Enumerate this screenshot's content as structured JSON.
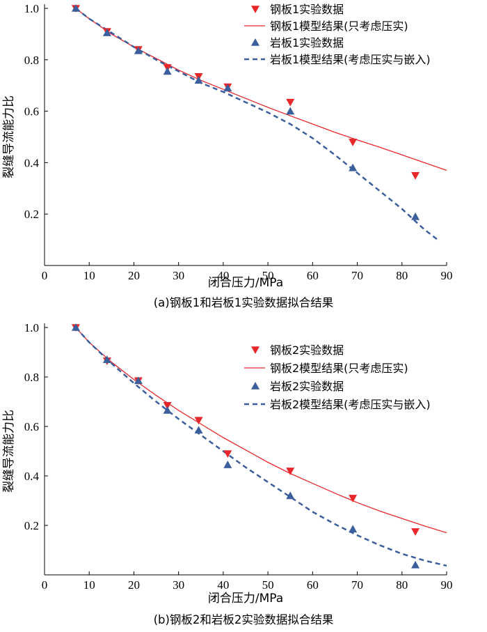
{
  "colors": {
    "steel": "#e8272a",
    "rock": "#3b5e9c"
  },
  "chart_data": [
    {
      "type": "scatter",
      "caption": "(a)钢板1和岩板1实验数据拟合结果",
      "xlabel": "闭合压力/MPa",
      "ylabel": "裂缝导流能力比",
      "xlim": [
        0,
        90
      ],
      "ylim": [
        0,
        1.0
      ],
      "xticks": [
        0,
        10,
        20,
        30,
        40,
        50,
        60,
        70,
        80,
        90
      ],
      "yticks": [
        0.2,
        0.4,
        0.6,
        0.8,
        1.0
      ],
      "grid": false,
      "legend_position": "top-right",
      "series": [
        {
          "name": "钢板1实验数据",
          "kind": "markers",
          "marker": "triangle-down",
          "x": [
            7,
            14,
            21,
            27.5,
            34.5,
            41,
            55,
            69,
            83
          ],
          "y": [
            1.0,
            0.91,
            0.84,
            0.77,
            0.735,
            0.695,
            0.635,
            0.48,
            0.35
          ]
        },
        {
          "name": "钢板1模型结果(只考虑压实)",
          "kind": "line",
          "style": "solid",
          "x": [
            7,
            10,
            15,
            20,
            25,
            30,
            35,
            40,
            45,
            50,
            55,
            60,
            65,
            70,
            75,
            80,
            85,
            90
          ],
          "y": [
            1.0,
            0.96,
            0.9,
            0.85,
            0.805,
            0.76,
            0.72,
            0.685,
            0.65,
            0.615,
            0.582,
            0.55,
            0.518,
            0.488,
            0.46,
            0.43,
            0.4,
            0.37
          ]
        },
        {
          "name": "岩板1实验数据",
          "kind": "markers",
          "marker": "triangle-up",
          "x": [
            7,
            14,
            21,
            27.5,
            34.5,
            41,
            55,
            69,
            83
          ],
          "y": [
            1.0,
            0.905,
            0.835,
            0.755,
            0.72,
            0.69,
            0.6,
            0.38,
            0.19
          ]
        },
        {
          "name": "岩板1模型结果(考虑压实与嵌入)",
          "kind": "line",
          "style": "dashed",
          "x": [
            7,
            10,
            15,
            20,
            25,
            30,
            35,
            40,
            45,
            50,
            55,
            60,
            65,
            70,
            75,
            80,
            85,
            88
          ],
          "y": [
            1.0,
            0.96,
            0.905,
            0.85,
            0.8,
            0.755,
            0.71,
            0.675,
            0.635,
            0.595,
            0.55,
            0.495,
            0.43,
            0.36,
            0.29,
            0.22,
            0.14,
            0.1
          ]
        }
      ]
    },
    {
      "type": "scatter",
      "caption": "(b)钢板2和岩板2实验数据拟合结果",
      "xlabel": "闭合压力/MPa",
      "ylabel": "裂缝导流能力比",
      "xlim": [
        0,
        90
      ],
      "ylim": [
        0,
        1.0
      ],
      "xticks": [
        0,
        10,
        20,
        30,
        40,
        50,
        60,
        70,
        80,
        90
      ],
      "yticks": [
        0.2,
        0.4,
        0.6,
        0.8,
        1.0
      ],
      "grid": false,
      "legend_position": "right",
      "series": [
        {
          "name": "钢板2实验数据",
          "kind": "markers",
          "marker": "triangle-down",
          "x": [
            7,
            14,
            21,
            27.5,
            34.5,
            41,
            55,
            69,
            83
          ],
          "y": [
            1.0,
            0.865,
            0.785,
            0.685,
            0.625,
            0.49,
            0.42,
            0.31,
            0.175
          ]
        },
        {
          "name": "钢板2模型结果(只考虑压实)",
          "kind": "line",
          "style": "solid",
          "x": [
            7,
            10,
            15,
            20,
            25,
            30,
            35,
            40,
            45,
            50,
            55,
            60,
            65,
            70,
            75,
            80,
            85,
            90
          ],
          "y": [
            1.0,
            0.94,
            0.86,
            0.79,
            0.725,
            0.665,
            0.61,
            0.555,
            0.505,
            0.455,
            0.41,
            0.37,
            0.33,
            0.292,
            0.258,
            0.228,
            0.198,
            0.17
          ]
        },
        {
          "name": "岩板2实验数据",
          "kind": "markers",
          "marker": "triangle-up",
          "x": [
            7,
            14,
            21,
            27.5,
            34.5,
            41,
            55,
            69,
            83
          ],
          "y": [
            1.0,
            0.87,
            0.785,
            0.665,
            0.585,
            0.445,
            0.32,
            0.185,
            0.04
          ]
        },
        {
          "name": "岩板2模型结果(考虑压实与嵌入)",
          "kind": "line",
          "style": "dashed",
          "x": [
            7,
            10,
            15,
            20,
            25,
            30,
            35,
            40,
            45,
            50,
            55,
            60,
            65,
            70,
            75,
            80,
            85,
            90
          ],
          "y": [
            1.0,
            0.94,
            0.855,
            0.775,
            0.7,
            0.63,
            0.565,
            0.5,
            0.435,
            0.375,
            0.315,
            0.255,
            0.205,
            0.16,
            0.12,
            0.085,
            0.058,
            0.037
          ]
        }
      ]
    }
  ]
}
